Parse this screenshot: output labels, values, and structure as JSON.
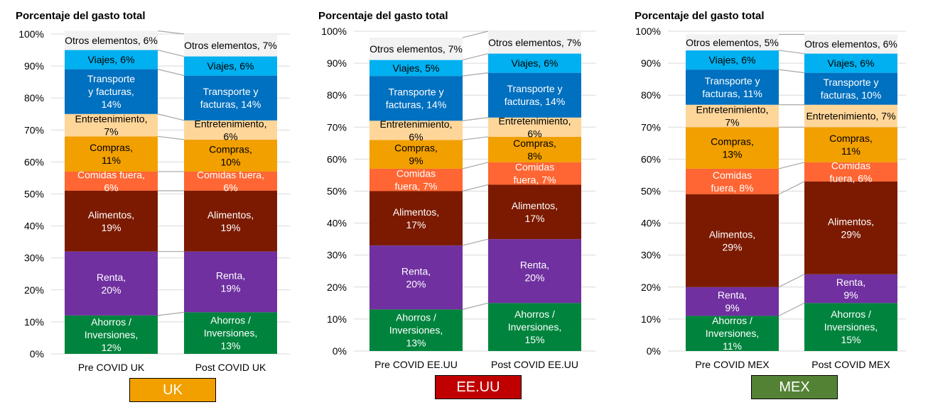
{
  "chart_data": [
    {
      "type": "bar",
      "stacked": true,
      "title": "Porcentaje del gasto total",
      "ylim": [
        0,
        100
      ],
      "yticks": [
        "0%",
        "10%",
        "20%",
        "30%",
        "40%",
        "50%",
        "60%",
        "70%",
        "80%",
        "90%",
        "100%"
      ],
      "categories": [
        "Pre COVID UK",
        "Post COVID UK"
      ],
      "series": [
        {
          "values": [
            12,
            13
          ],
          "labels": [
            "Ahorros /\nInversiones,\n12%",
            "Ahorros /\nInversiones,\n13%"
          ]
        },
        {
          "values": [
            20,
            19
          ],
          "labels": [
            "Renta,\n20%",
            "Renta,\n19%"
          ]
        },
        {
          "values": [
            19,
            19
          ],
          "labels": [
            "Alimentos,\n19%",
            "Alimentos,\n19%"
          ]
        },
        {
          "values": [
            6,
            6
          ],
          "labels": [
            "Comidas fuera,\n6%",
            "Comidas fuera,\n6%"
          ]
        },
        {
          "values": [
            11,
            10
          ],
          "labels": [
            "Compras,\n11%",
            "Compras,\n10%"
          ]
        },
        {
          "values": [
            7,
            6
          ],
          "labels": [
            "Entretenimiento,\n7%",
            "Entretenimiento,\n6%"
          ]
        },
        {
          "values": [
            14,
            14
          ],
          "labels": [
            "Transporte\ny facturas,\n14%",
            "Transporte y\nfacturas, 14%"
          ]
        },
        {
          "values": [
            6,
            6
          ],
          "labels": [
            "Viajes, 6%",
            "Viajes, 6%"
          ]
        },
        {
          "values": [
            6,
            7
          ],
          "labels": [
            "Otros elementos, 6%",
            "Otros elementos, 7%"
          ]
        }
      ],
      "badge": "UK",
      "badge_color": "#f29f00"
    },
    {
      "type": "bar",
      "stacked": true,
      "title": "Porcentaje del gasto total",
      "ylim": [
        0,
        100
      ],
      "yticks": [
        "0%",
        "10%",
        "20%",
        "30%",
        "40%",
        "50%",
        "60%",
        "70%",
        "80%",
        "90%",
        "100%"
      ],
      "categories": [
        "Pre COVID EE.UU",
        "Post COVID EE.UU"
      ],
      "series": [
        {
          "values": [
            13,
            15
          ],
          "labels": [
            "Ahorros /\nInversiones,\n13%",
            "Ahorros /\nInversiones,\n15%"
          ]
        },
        {
          "values": [
            20,
            20
          ],
          "labels": [
            "Renta,\n20%",
            "Renta,\n20%"
          ]
        },
        {
          "values": [
            17,
            17
          ],
          "labels": [
            "Alimentos,\n17%",
            "Alimentos,\n17%"
          ]
        },
        {
          "values": [
            7,
            7
          ],
          "labels": [
            "Comidas\nfuera, 7%",
            "Comidas\nfuera, 7%"
          ]
        },
        {
          "values": [
            9,
            8
          ],
          "labels": [
            "Compras,\n9%",
            "Compras,\n8%"
          ]
        },
        {
          "values": [
            6,
            6
          ],
          "labels": [
            "Entretenimiento,\n6%",
            "Entretenimiento,\n6%"
          ]
        },
        {
          "values": [
            14,
            14
          ],
          "labels": [
            "Transporte y\nfacturas, 14%",
            "Transporte y\nfacturas, 14%"
          ]
        },
        {
          "values": [
            5,
            6
          ],
          "labels": [
            "Viajes, 5%",
            "Viajes, 6%"
          ]
        },
        {
          "values": [
            7,
            7
          ],
          "labels": [
            "Otros elementos, 7%",
            "Otros elementos, 7%"
          ]
        }
      ],
      "badge": "EE.UU",
      "badge_color": "#c00000"
    },
    {
      "type": "bar",
      "stacked": true,
      "title": "Porcentaje del gasto total",
      "ylim": [
        0,
        100
      ],
      "yticks": [
        "0%",
        "10%",
        "20%",
        "30%",
        "40%",
        "50%",
        "60%",
        "70%",
        "80%",
        "90%",
        "100%"
      ],
      "categories": [
        "Pre COVID MEX",
        "Post COVID MEX"
      ],
      "series": [
        {
          "values": [
            11,
            15
          ],
          "labels": [
            "Ahorros /\nInversiones,\n11%",
            "Ahorros /\nInversiones,\n15%"
          ]
        },
        {
          "values": [
            9,
            9
          ],
          "labels": [
            "Renta,\n9%",
            "Renta,\n9%"
          ]
        },
        {
          "values": [
            29,
            29
          ],
          "labels": [
            "Alimentos,\n29%",
            "Alimentos,\n29%"
          ]
        },
        {
          "values": [
            8,
            6
          ],
          "labels": [
            "Comidas\nfuera, 8%",
            "Comidas\nfuera, 6%"
          ]
        },
        {
          "values": [
            13,
            11
          ],
          "labels": [
            "Compras,\n13%",
            "Compras,\n11%"
          ]
        },
        {
          "values": [
            7,
            7
          ],
          "labels": [
            "Entretenimiento,\n7%",
            "Entretenimiento, 7%"
          ]
        },
        {
          "values": [
            11,
            10
          ],
          "labels": [
            "Transporte y\nfacturas, 11%",
            "Transporte y\nfacturas, 10%"
          ]
        },
        {
          "values": [
            6,
            6
          ],
          "labels": [
            "Viajes, 6%",
            "Viajes, 6%"
          ]
        },
        {
          "values": [
            5,
            6
          ],
          "labels": [
            "Otros elementos, 5%",
            "Otros elementos, 6%"
          ]
        }
      ],
      "badge": "MEX",
      "badge_color": "#548235"
    }
  ],
  "colors": {
    "series": [
      "#00843d",
      "#7030a0",
      "#7b1a00",
      "#ff6633",
      "#f29f00",
      "#ffd699",
      "#0070c0",
      "#00b0f0",
      "#f2f2f2"
    ],
    "label_text": [
      "#ffffff",
      "#ffffff",
      "#ffffff",
      "#ffffff",
      "#000000",
      "#000000",
      "#ffffff",
      "#000000",
      "#000000"
    ],
    "gridline": "#d9d9d9",
    "connector": "#a6a6a6"
  }
}
